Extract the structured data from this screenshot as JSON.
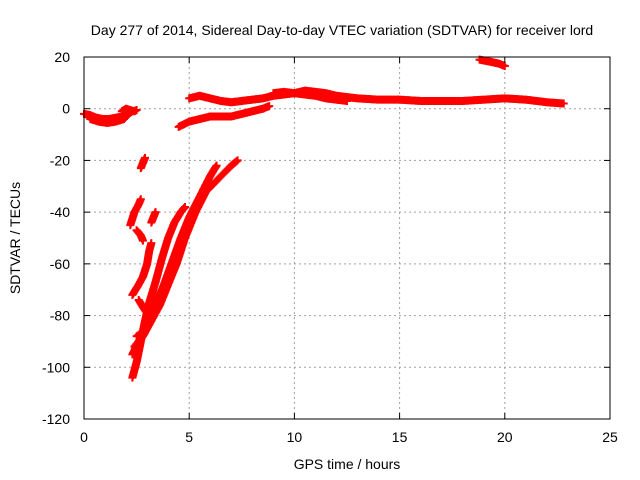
{
  "chart_data": {
    "type": "scatter",
    "title": "Day 277 of 2014, Sidereal Day-to-day VTEC variation (SDTVAR) for receiver lord",
    "xlabel": "GPS time / hours",
    "ylabel": "SDTVAR / TECUs",
    "xlim": [
      0,
      25
    ],
    "ylim": [
      -120,
      20
    ],
    "xticks": [
      0,
      5,
      10,
      15,
      20,
      25
    ],
    "yticks": [
      20,
      0,
      -20,
      -40,
      -60,
      -80,
      -100,
      -120
    ],
    "grid": true,
    "legend": "none",
    "marker": "plus",
    "color": "#ff0000",
    "series": [
      {
        "values": [
          [
            0.0,
            -2
          ],
          [
            0.3,
            -2.5
          ],
          [
            0.6,
            -3.5
          ],
          [
            0.9,
            -4
          ],
          [
            1.2,
            -4
          ],
          [
            1.5,
            -3.5
          ],
          [
            1.8,
            -3
          ],
          [
            2.0,
            -2
          ]
        ]
      },
      {
        "values": [
          [
            0.3,
            -4
          ],
          [
            0.7,
            -5
          ],
          [
            1.1,
            -5.5
          ],
          [
            1.5,
            -5
          ],
          [
            1.9,
            -4
          ],
          [
            2.1,
            -2
          ],
          [
            2.3,
            -1
          ]
        ]
      },
      {
        "values": [
          [
            1.8,
            -1
          ],
          [
            2.0,
            0
          ],
          [
            2.2,
            -0.5
          ],
          [
            2.4,
            -1
          ],
          [
            2.5,
            -0.5
          ]
        ]
      },
      {
        "values": [
          [
            2.3,
            -72
          ],
          [
            2.6,
            -68
          ],
          [
            2.8,
            -65
          ],
          [
            3.0,
            -60
          ],
          [
            3.1,
            -55
          ],
          [
            3.2,
            -52
          ]
        ]
      },
      {
        "values": [
          [
            2.2,
            -45
          ],
          [
            2.4,
            -40
          ],
          [
            2.6,
            -37
          ],
          [
            2.7,
            -35
          ]
        ]
      },
      {
        "values": [
          [
            2.7,
            -23
          ],
          [
            2.8,
            -21
          ],
          [
            2.9,
            -19
          ]
        ]
      },
      {
        "values": [
          [
            3.2,
            -44
          ],
          [
            3.3,
            -42
          ],
          [
            3.4,
            -40
          ]
        ]
      },
      {
        "values": [
          [
            2.5,
            -47
          ],
          [
            2.7,
            -49
          ],
          [
            2.8,
            -51
          ]
        ]
      },
      {
        "values": [
          [
            2.3,
            -104
          ],
          [
            2.5,
            -98
          ],
          [
            2.7,
            -90
          ],
          [
            2.9,
            -82
          ],
          [
            3.1,
            -75
          ],
          [
            3.4,
            -67
          ],
          [
            3.7,
            -58
          ],
          [
            4.0,
            -50
          ],
          [
            4.3,
            -44
          ],
          [
            4.6,
            -40
          ],
          [
            4.8,
            -38
          ]
        ]
      },
      {
        "values": [
          [
            2.3,
            -95
          ],
          [
            2.6,
            -90
          ],
          [
            3.0,
            -84
          ],
          [
            3.4,
            -76
          ],
          [
            3.8,
            -68
          ],
          [
            4.2,
            -59
          ],
          [
            4.6,
            -50
          ],
          [
            5.0,
            -42
          ],
          [
            5.5,
            -34
          ],
          [
            6.0,
            -26
          ],
          [
            6.3,
            -22
          ]
        ]
      },
      {
        "values": [
          [
            2.4,
            -92
          ],
          [
            2.8,
            -88
          ],
          [
            3.2,
            -82
          ],
          [
            3.6,
            -76
          ],
          [
            4.0,
            -68
          ],
          [
            4.4,
            -60
          ],
          [
            4.8,
            -50
          ],
          [
            5.3,
            -40
          ],
          [
            5.8,
            -32
          ],
          [
            6.4,
            -27
          ],
          [
            7.0,
            -22
          ],
          [
            7.3,
            -20
          ]
        ]
      },
      {
        "values": [
          [
            2.5,
            -88
          ],
          [
            2.9,
            -86
          ],
          [
            3.3,
            -80
          ],
          [
            3.7,
            -72
          ],
          [
            4.1,
            -64
          ],
          [
            4.5,
            -55
          ],
          [
            4.9,
            -46
          ],
          [
            5.2,
            -40
          ]
        ]
      },
      {
        "values": [
          [
            2.6,
            -74
          ],
          [
            2.9,
            -78
          ],
          [
            3.1,
            -80
          ],
          [
            3.3,
            -78
          ],
          [
            3.5,
            -72
          ]
        ]
      },
      {
        "values": [
          [
            4.5,
            -7
          ],
          [
            5.0,
            -5
          ],
          [
            5.5,
            -4
          ],
          [
            6.0,
            -3
          ],
          [
            6.5,
            -3
          ],
          [
            7.0,
            -3
          ],
          [
            7.5,
            -2
          ],
          [
            8.0,
            -1
          ],
          [
            8.5,
            0
          ],
          [
            8.8,
            1
          ]
        ]
      },
      {
        "values": [
          [
            5.0,
            4
          ],
          [
            5.5,
            5
          ],
          [
            6.0,
            4
          ],
          [
            6.5,
            3
          ],
          [
            7.0,
            2.5
          ],
          [
            7.5,
            3
          ],
          [
            8.0,
            3.5
          ],
          [
            8.5,
            4
          ],
          [
            9.0,
            5
          ],
          [
            9.5,
            5.5
          ],
          [
            10.0,
            6
          ],
          [
            10.5,
            7
          ],
          [
            11.0,
            6.5
          ],
          [
            11.5,
            6
          ],
          [
            12.0,
            5
          ],
          [
            13.0,
            4
          ],
          [
            14.0,
            3.5
          ],
          [
            15.0,
            3.5
          ],
          [
            16.0,
            3
          ],
          [
            17.0,
            3
          ],
          [
            18.0,
            3
          ],
          [
            19.0,
            3.5
          ],
          [
            20.0,
            4
          ],
          [
            21.0,
            3.5
          ],
          [
            22.0,
            2.5
          ],
          [
            22.8,
            2
          ]
        ]
      },
      {
        "values": [
          [
            9.0,
            6
          ],
          [
            9.5,
            6.5
          ],
          [
            10.0,
            6
          ],
          [
            10.5,
            5.5
          ],
          [
            11.0,
            5
          ],
          [
            11.5,
            4
          ],
          [
            12.0,
            3.5
          ],
          [
            12.5,
            3
          ]
        ]
      },
      {
        "values": [
          [
            18.8,
            19
          ],
          [
            19.1,
            18.5
          ],
          [
            19.4,
            18
          ],
          [
            19.7,
            17.5
          ],
          [
            20.0,
            16.5
          ]
        ]
      }
    ]
  }
}
